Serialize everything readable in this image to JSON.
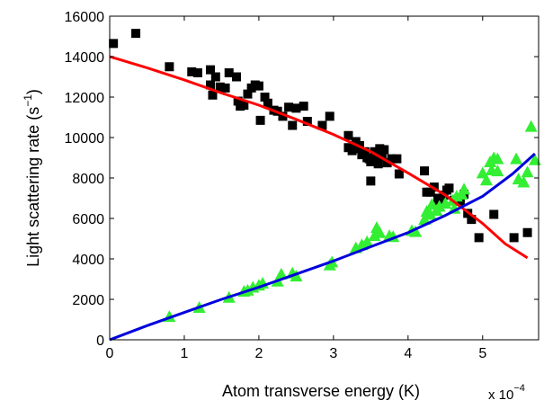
{
  "chart_data": {
    "type": "scatter",
    "xlabel": "Atom transverse energy (K)",
    "ylabel": "Light scattering rate (s",
    "ylabel_superscript": "−1",
    "ylabel_suffix": ")",
    "x_multiplier_label": "x 10",
    "x_multiplier_exponent": "−4",
    "xlim": [
      0,
      5.75
    ],
    "ylim": [
      0,
      16000
    ],
    "x_ticks": [
      0,
      1,
      2,
      3,
      4,
      5
    ],
    "x_tick_labels": [
      "0",
      "1",
      "2",
      "3",
      "4",
      "5"
    ],
    "y_ticks": [
      0,
      2000,
      4000,
      6000,
      8000,
      10000,
      12000,
      14000,
      16000
    ],
    "y_tick_labels": [
      "0",
      "2000",
      "4000",
      "6000",
      "8000",
      "10000",
      "12000",
      "14000",
      "16000"
    ],
    "grid": false,
    "series": [
      {
        "marker": "square",
        "color": "#000000",
        "points": [
          [
            0.05,
            14650
          ],
          [
            0.35,
            15150
          ],
          [
            0.8,
            13500
          ],
          [
            1.1,
            13250
          ],
          [
            1.18,
            13200
          ],
          [
            1.35,
            13350
          ],
          [
            1.35,
            12600
          ],
          [
            1.38,
            12100
          ],
          [
            1.42,
            13000
          ],
          [
            1.48,
            12500
          ],
          [
            1.55,
            12450
          ],
          [
            1.6,
            13200
          ],
          [
            1.7,
            13000
          ],
          [
            1.72,
            11800
          ],
          [
            1.75,
            11550
          ],
          [
            1.8,
            11600
          ],
          [
            1.85,
            12150
          ],
          [
            1.9,
            12450
          ],
          [
            1.95,
            12600
          ],
          [
            2.0,
            12550
          ],
          [
            2.02,
            10850
          ],
          [
            2.08,
            12000
          ],
          [
            2.12,
            11700
          ],
          [
            2.2,
            11350
          ],
          [
            2.25,
            11300
          ],
          [
            2.32,
            11050
          ],
          [
            2.4,
            11500
          ],
          [
            2.45,
            10600
          ],
          [
            2.5,
            11450
          ],
          [
            2.6,
            11550
          ],
          [
            2.65,
            10800
          ],
          [
            2.85,
            10600
          ],
          [
            2.95,
            11050
          ],
          [
            3.2,
            10100
          ],
          [
            3.2,
            9500
          ],
          [
            3.25,
            9350
          ],
          [
            3.3,
            9800
          ],
          [
            3.32,
            9450
          ],
          [
            3.35,
            9600
          ],
          [
            3.38,
            9150
          ],
          [
            3.42,
            9300
          ],
          [
            3.45,
            9000
          ],
          [
            3.48,
            8950
          ],
          [
            3.5,
            8800
          ],
          [
            3.5,
            7850
          ],
          [
            3.55,
            9300
          ],
          [
            3.58,
            9000
          ],
          [
            3.6,
            8700
          ],
          [
            3.62,
            9450
          ],
          [
            3.65,
            9100
          ],
          [
            3.68,
            9400
          ],
          [
            3.72,
            8750
          ],
          [
            3.78,
            8950
          ],
          [
            3.85,
            8950
          ],
          [
            3.88,
            8200
          ],
          [
            4.22,
            8350
          ],
          [
            4.25,
            7300
          ],
          [
            4.3,
            7300
          ],
          [
            4.35,
            7550
          ],
          [
            4.4,
            7000
          ],
          [
            4.42,
            6700
          ],
          [
            4.48,
            7150
          ],
          [
            4.52,
            7400
          ],
          [
            4.55,
            7500
          ],
          [
            4.62,
            6900
          ],
          [
            4.7,
            6850
          ],
          [
            4.75,
            7200
          ],
          [
            4.8,
            6250
          ],
          [
            4.85,
            5950
          ],
          [
            4.95,
            5050
          ],
          [
            5.15,
            6200
          ],
          [
            5.42,
            5050
          ],
          [
            5.6,
            5300
          ]
        ]
      },
      {
        "marker": "triangle",
        "color": "#33ee33",
        "points": [
          [
            0.8,
            1150
          ],
          [
            1.2,
            1600
          ],
          [
            1.6,
            2100
          ],
          [
            1.8,
            2400
          ],
          [
            1.85,
            2450
          ],
          [
            1.92,
            2600
          ],
          [
            2.0,
            2700
          ],
          [
            2.05,
            2800
          ],
          [
            2.25,
            2900
          ],
          [
            2.3,
            3250
          ],
          [
            2.45,
            3300
          ],
          [
            2.5,
            3150
          ],
          [
            2.95,
            3700
          ],
          [
            2.98,
            3850
          ],
          [
            3.3,
            4550
          ],
          [
            3.38,
            4700
          ],
          [
            3.45,
            4850
          ],
          [
            3.55,
            5150
          ],
          [
            3.58,
            5550
          ],
          [
            3.62,
            5300
          ],
          [
            3.75,
            5150
          ],
          [
            3.8,
            5100
          ],
          [
            4.05,
            5400
          ],
          [
            4.1,
            5350
          ],
          [
            4.22,
            5950
          ],
          [
            4.25,
            6350
          ],
          [
            4.3,
            6200
          ],
          [
            4.32,
            6700
          ],
          [
            4.38,
            6400
          ],
          [
            4.42,
            6600
          ],
          [
            4.5,
            6750
          ],
          [
            4.6,
            6900
          ],
          [
            4.62,
            6500
          ],
          [
            4.65,
            7100
          ],
          [
            4.72,
            7200
          ],
          [
            4.75,
            7450
          ],
          [
            5.0,
            8250
          ],
          [
            5.05,
            7900
          ],
          [
            5.1,
            8800
          ],
          [
            5.12,
            8400
          ],
          [
            5.15,
            9000
          ],
          [
            5.2,
            8950
          ],
          [
            5.2,
            8350
          ],
          [
            5.45,
            8950
          ],
          [
            5.48,
            7950
          ],
          [
            5.55,
            7800
          ],
          [
            5.6,
            8300
          ],
          [
            5.65,
            10550
          ],
          [
            5.7,
            8900
          ]
        ]
      },
      {
        "type": "line",
        "color": "#ff0000",
        "points": [
          [
            0,
            14000
          ],
          [
            0.5,
            13450
          ],
          [
            1,
            12850
          ],
          [
            1.5,
            12200
          ],
          [
            2,
            11600
          ],
          [
            2.5,
            10900
          ],
          [
            3,
            10150
          ],
          [
            3.5,
            9300
          ],
          [
            4,
            8250
          ],
          [
            4.5,
            7150
          ],
          [
            5,
            5750
          ],
          [
            5.3,
            4750
          ],
          [
            5.6,
            4050
          ]
        ]
      },
      {
        "type": "line",
        "color": "#0000dd",
        "points": [
          [
            0,
            0
          ],
          [
            0.5,
            700
          ],
          [
            1,
            1350
          ],
          [
            1.5,
            2000
          ],
          [
            2,
            2600
          ],
          [
            2.5,
            3250
          ],
          [
            3,
            3900
          ],
          [
            3.5,
            4600
          ],
          [
            4,
            5300
          ],
          [
            4.5,
            6150
          ],
          [
            5,
            7100
          ],
          [
            5.4,
            8200
          ],
          [
            5.7,
            9200
          ]
        ]
      }
    ]
  }
}
